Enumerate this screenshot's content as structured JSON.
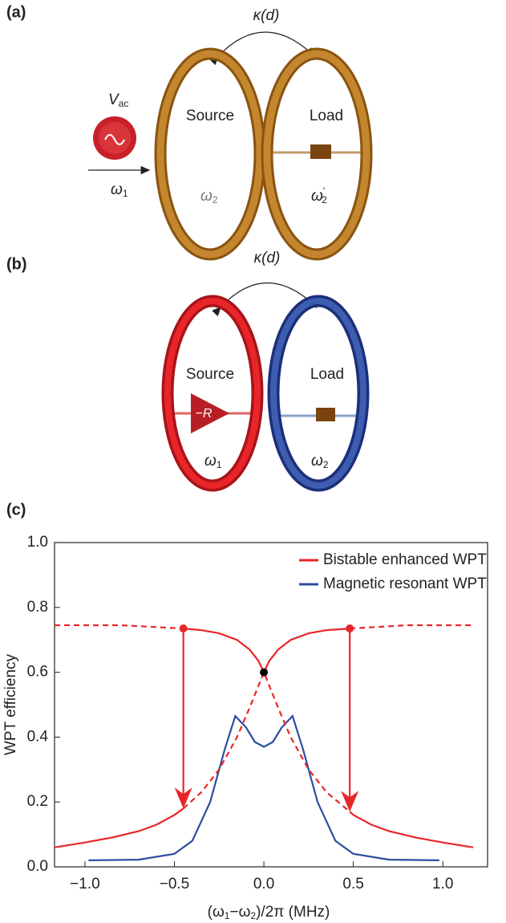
{
  "panel_a": {
    "tag": "(a)",
    "coupling": "κ(d)",
    "source": "Source",
    "load": "Load",
    "drive": {
      "symbol": "V",
      "subscript": "ac"
    },
    "drive_freq": {
      "symbol": "ω",
      "subscript": "1"
    },
    "source_freq": {
      "symbol": "ω",
      "subscript": "2"
    },
    "load_freq": {
      "symbol": "ω",
      "prime": "'",
      "subscript": "2"
    }
  },
  "panel_b": {
    "tag": "(b)",
    "coupling": "κ(d)",
    "source": "Source",
    "load": "Load",
    "gain": "−R",
    "source_freq": {
      "symbol": "ω",
      "subscript": "1"
    },
    "load_freq": {
      "symbol": "ω",
      "subscript": "2"
    }
  },
  "chart_data": {
    "type": "line",
    "tag": "(c)",
    "y_label": "WPT efficiency",
    "x_label": [
      "(ω",
      "1",
      "−ω",
      "2",
      ")/2π (MHz)"
    ],
    "xlim": [
      -1.17,
      1.25
    ],
    "ylim": [
      0,
      1
    ],
    "xticks": [
      {
        "value": -1,
        "label": "−1.0"
      },
      {
        "value": -0.5,
        "label": "−0.5"
      },
      {
        "value": 0,
        "label": "0.0"
      },
      0.5,
      {
        "value": 1,
        "label": "1.0"
      }
    ],
    "yticks": [
      {
        "value": 0,
        "label": "0.0"
      },
      0.2,
      0.4,
      0.6,
      0.8,
      {
        "value": 1,
        "label": "1.0"
      }
    ],
    "legend": "upper right",
    "series": [
      {
        "name": "Bistable enhanced WPT",
        "color": "#e8262a",
        "style": "solid",
        "x": [
          -1.17,
          -1.0,
          -0.85,
          -0.7,
          -0.6,
          -0.5,
          -0.45,
          null,
          -0.45,
          -0.35,
          -0.25,
          -0.15,
          -0.08,
          -0.03,
          0,
          0.03,
          0.08,
          0.15,
          0.25,
          0.35,
          0.48,
          null,
          0.48,
          0.5,
          0.6,
          0.7,
          0.85,
          1.0,
          1.17
        ],
        "values": [
          0.06,
          0.075,
          0.09,
          0.11,
          0.13,
          0.16,
          0.18,
          null,
          0.735,
          0.73,
          0.72,
          0.7,
          0.67,
          0.635,
          0.6,
          0.635,
          0.67,
          0.7,
          0.72,
          0.73,
          0.735,
          null,
          0.17,
          0.16,
          0.13,
          0.11,
          0.09,
          0.075,
          0.06
        ]
      },
      {
        "name": "Magnetic resonant WPT",
        "color": "#2b4ea2",
        "style": "solid",
        "x": [
          -0.98,
          -0.7,
          -0.5,
          -0.4,
          -0.3,
          -0.22,
          -0.16,
          -0.1,
          -0.05,
          0,
          0.05,
          0.1,
          0.16,
          0.22,
          0.3,
          0.4,
          0.5,
          0.7,
          0.98
        ],
        "values": [
          0.02,
          0.022,
          0.04,
          0.08,
          0.2,
          0.36,
          0.465,
          0.43,
          0.385,
          0.37,
          0.385,
          0.43,
          0.465,
          0.36,
          0.2,
          0.08,
          0.04,
          0.022,
          0.02
        ]
      },
      {
        "color": "#e8262a",
        "style": "dashed",
        "x": [
          -1.17,
          -0.8,
          -0.45,
          null,
          -0.45,
          -0.35,
          -0.25,
          -0.15,
          -0.08,
          0,
          0.08,
          0.15,
          0.25,
          0.35,
          0.48,
          null,
          0.48,
          0.8,
          1.17
        ],
        "values": [
          0.745,
          0.745,
          0.735,
          null,
          0.18,
          0.23,
          0.3,
          0.4,
          0.49,
          0.6,
          0.49,
          0.4,
          0.3,
          0.23,
          0.17,
          null,
          0.735,
          0.745,
          0.745
        ]
      }
    ],
    "markers": [
      {
        "x": -0.45,
        "y": 0.735,
        "color": "#e8262a"
      },
      {
        "x": 0,
        "y": 0.6,
        "color": "#000000"
      },
      {
        "x": 0.48,
        "y": 0.735,
        "color": "#e8262a"
      }
    ],
    "arrows": [
      {
        "x": -0.45,
        "y_from": 0.735,
        "y_to": 0.18,
        "color": "#e8262a"
      },
      {
        "x": 0.48,
        "y_from": 0.735,
        "y_to": 0.17,
        "color": "#e8262a"
      }
    ]
  }
}
